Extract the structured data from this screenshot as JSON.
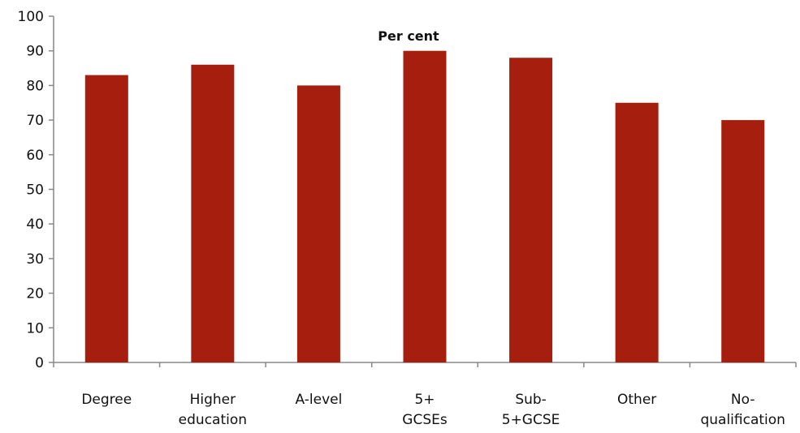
{
  "chart_data": {
    "type": "bar",
    "title": "Per cent",
    "categories": [
      [
        "Degree"
      ],
      [
        "Higher",
        "education"
      ],
      [
        "A-level"
      ],
      [
        "5+",
        "GCSEs"
      ],
      [
        "Sub-",
        "5+GCSE"
      ],
      [
        "Other"
      ],
      [
        "No-",
        "qualification"
      ]
    ],
    "values": [
      83,
      86,
      80,
      90,
      88,
      75,
      70
    ],
    "ylim": [
      0,
      100
    ],
    "yticks": [
      0,
      10,
      20,
      30,
      40,
      50,
      60,
      70,
      80,
      90,
      100
    ],
    "xlabel": "",
    "ylabel": "",
    "grid": false,
    "bar_color": "#A51E0E",
    "axis_color": "#888888"
  }
}
